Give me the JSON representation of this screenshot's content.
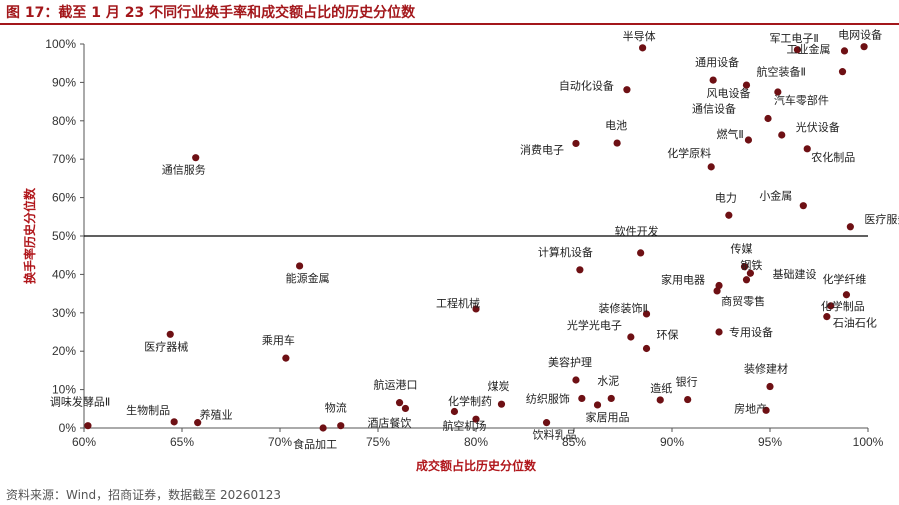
{
  "title": "图 17：截至 1 月 23 不同行业换手率和成交额占比的历史分位数",
  "source": "资料来源：Wind，招商证券，数据截至 20260123",
  "chart_data": {
    "type": "scatter",
    "xlabel": "成交额占比历史分位数",
    "ylabel": "换手率历史分位数",
    "xlim": [
      0.6,
      1.0
    ],
    "ylim": [
      0.0,
      1.0
    ],
    "x_ticks": [
      "60%",
      "65%",
      "70%",
      "75%",
      "80%",
      "85%",
      "90%",
      "95%",
      "100%"
    ],
    "y_ticks": [
      "0%",
      "10%",
      "20%",
      "30%",
      "40%",
      "50%",
      "60%",
      "70%",
      "80%",
      "90%",
      "100%"
    ],
    "reference_line_y": 0.5,
    "grid": false,
    "point_color": "#6e1014",
    "points": [
      {
        "label": "半导体",
        "x": 0.885,
        "y": 0.99
      },
      {
        "label": "电网设备",
        "x": 0.998,
        "y": 0.993
      },
      {
        "label": "军工电子Ⅱ",
        "x": 0.964,
        "y": 0.985
      },
      {
        "label": "工业金属",
        "x": 0.988,
        "y": 0.982
      },
      {
        "label": "通用设备",
        "x": 0.921,
        "y": 0.906
      },
      {
        "label": "航空装备Ⅱ",
        "x": 0.987,
        "y": 0.928
      },
      {
        "label": "风电设备",
        "x": 0.938,
        "y": 0.893
      },
      {
        "label": "自动化设备",
        "x": 0.877,
        "y": 0.881
      },
      {
        "label": "汽车零部件",
        "x": 0.954,
        "y": 0.875
      },
      {
        "label": "通信设备",
        "x": 0.949,
        "y": 0.806
      },
      {
        "label": "光伏设备",
        "x": 0.956,
        "y": 0.763
      },
      {
        "label": "电池",
        "x": 0.872,
        "y": 0.742
      },
      {
        "label": "消费电子",
        "x": 0.851,
        "y": 0.741
      },
      {
        "label": "燃气Ⅱ",
        "x": 0.939,
        "y": 0.75
      },
      {
        "label": "农化制品",
        "x": 0.969,
        "y": 0.727
      },
      {
        "label": "通信服务",
        "x": 0.657,
        "y": 0.704
      },
      {
        "label": "化学原料",
        "x": 0.92,
        "y": 0.68
      },
      {
        "label": "小金属",
        "x": 0.967,
        "y": 0.579
      },
      {
        "label": "电力",
        "x": 0.929,
        "y": 0.554
      },
      {
        "label": "医疗服务",
        "x": 0.991,
        "y": 0.524
      },
      {
        "label": "软件开发",
        "x": 0.884,
        "y": 0.456
      },
      {
        "label": "传媒",
        "x": 0.937,
        "y": 0.42
      },
      {
        "label": "钢铁",
        "x": 0.94,
        "y": 0.403
      },
      {
        "label": "计算机设备",
        "x": 0.853,
        "y": 0.412
      },
      {
        "label": "基础建设",
        "x": 0.938,
        "y": 0.386
      },
      {
        "label": "能源金属",
        "x": 0.71,
        "y": 0.422
      },
      {
        "label": "家用电器",
        "x": 0.924,
        "y": 0.371
      },
      {
        "label": "商贸零售",
        "x": 0.923,
        "y": 0.357
      },
      {
        "label": "化学纤维",
        "x": 0.989,
        "y": 0.347
      },
      {
        "label": "化学制品",
        "x": 0.981,
        "y": 0.318
      },
      {
        "label": "工程机械",
        "x": 0.8,
        "y": 0.31
      },
      {
        "label": "装修装饰Ⅱ",
        "x": 0.887,
        "y": 0.297
      },
      {
        "label": "石油石化",
        "x": 0.979,
        "y": 0.29
      },
      {
        "label": "光学光电子",
        "x": 0.879,
        "y": 0.237
      },
      {
        "label": "专用设备",
        "x": 0.924,
        "y": 0.25
      },
      {
        "label": "环保",
        "x": 0.887,
        "y": 0.207
      },
      {
        "label": "医疗器械",
        "x": 0.644,
        "y": 0.244
      },
      {
        "label": "乘用车",
        "x": 0.703,
        "y": 0.182
      },
      {
        "label": "美容护理",
        "x": 0.851,
        "y": 0.125
      },
      {
        "label": "装修建材",
        "x": 0.95,
        "y": 0.108
      },
      {
        "label": "水泥",
        "x": 0.869,
        "y": 0.077
      },
      {
        "label": "银行",
        "x": 0.908,
        "y": 0.074
      },
      {
        "label": "造纸",
        "x": 0.894,
        "y": 0.073
      },
      {
        "label": "航运港口",
        "x": 0.761,
        "y": 0.066
      },
      {
        "label": "纺织服饰",
        "x": 0.854,
        "y": 0.077
      },
      {
        "label": "家居用品",
        "x": 0.862,
        "y": 0.06
      },
      {
        "label": "煤炭",
        "x": 0.813,
        "y": 0.062
      },
      {
        "label": "酒店餐饮",
        "x": 0.764,
        "y": 0.051
      },
      {
        "label": "航空机场",
        "x": 0.789,
        "y": 0.043
      },
      {
        "label": "化学制药",
        "x": 0.8,
        "y": 0.023
      },
      {
        "label": "房地产",
        "x": 0.948,
        "y": 0.046
      },
      {
        "label": "饮料乳品",
        "x": 0.836,
        "y": 0.014
      },
      {
        "label": "调味发酵品Ⅱ",
        "x": 0.602,
        "y": 0.006
      },
      {
        "label": "生物制品",
        "x": 0.646,
        "y": 0.016
      },
      {
        "label": "养殖业",
        "x": 0.658,
        "y": 0.014
      },
      {
        "label": "物流",
        "x": 0.731,
        "y": 0.006
      },
      {
        "label": "食品加工",
        "x": 0.722,
        "y": 0.0
      }
    ]
  }
}
